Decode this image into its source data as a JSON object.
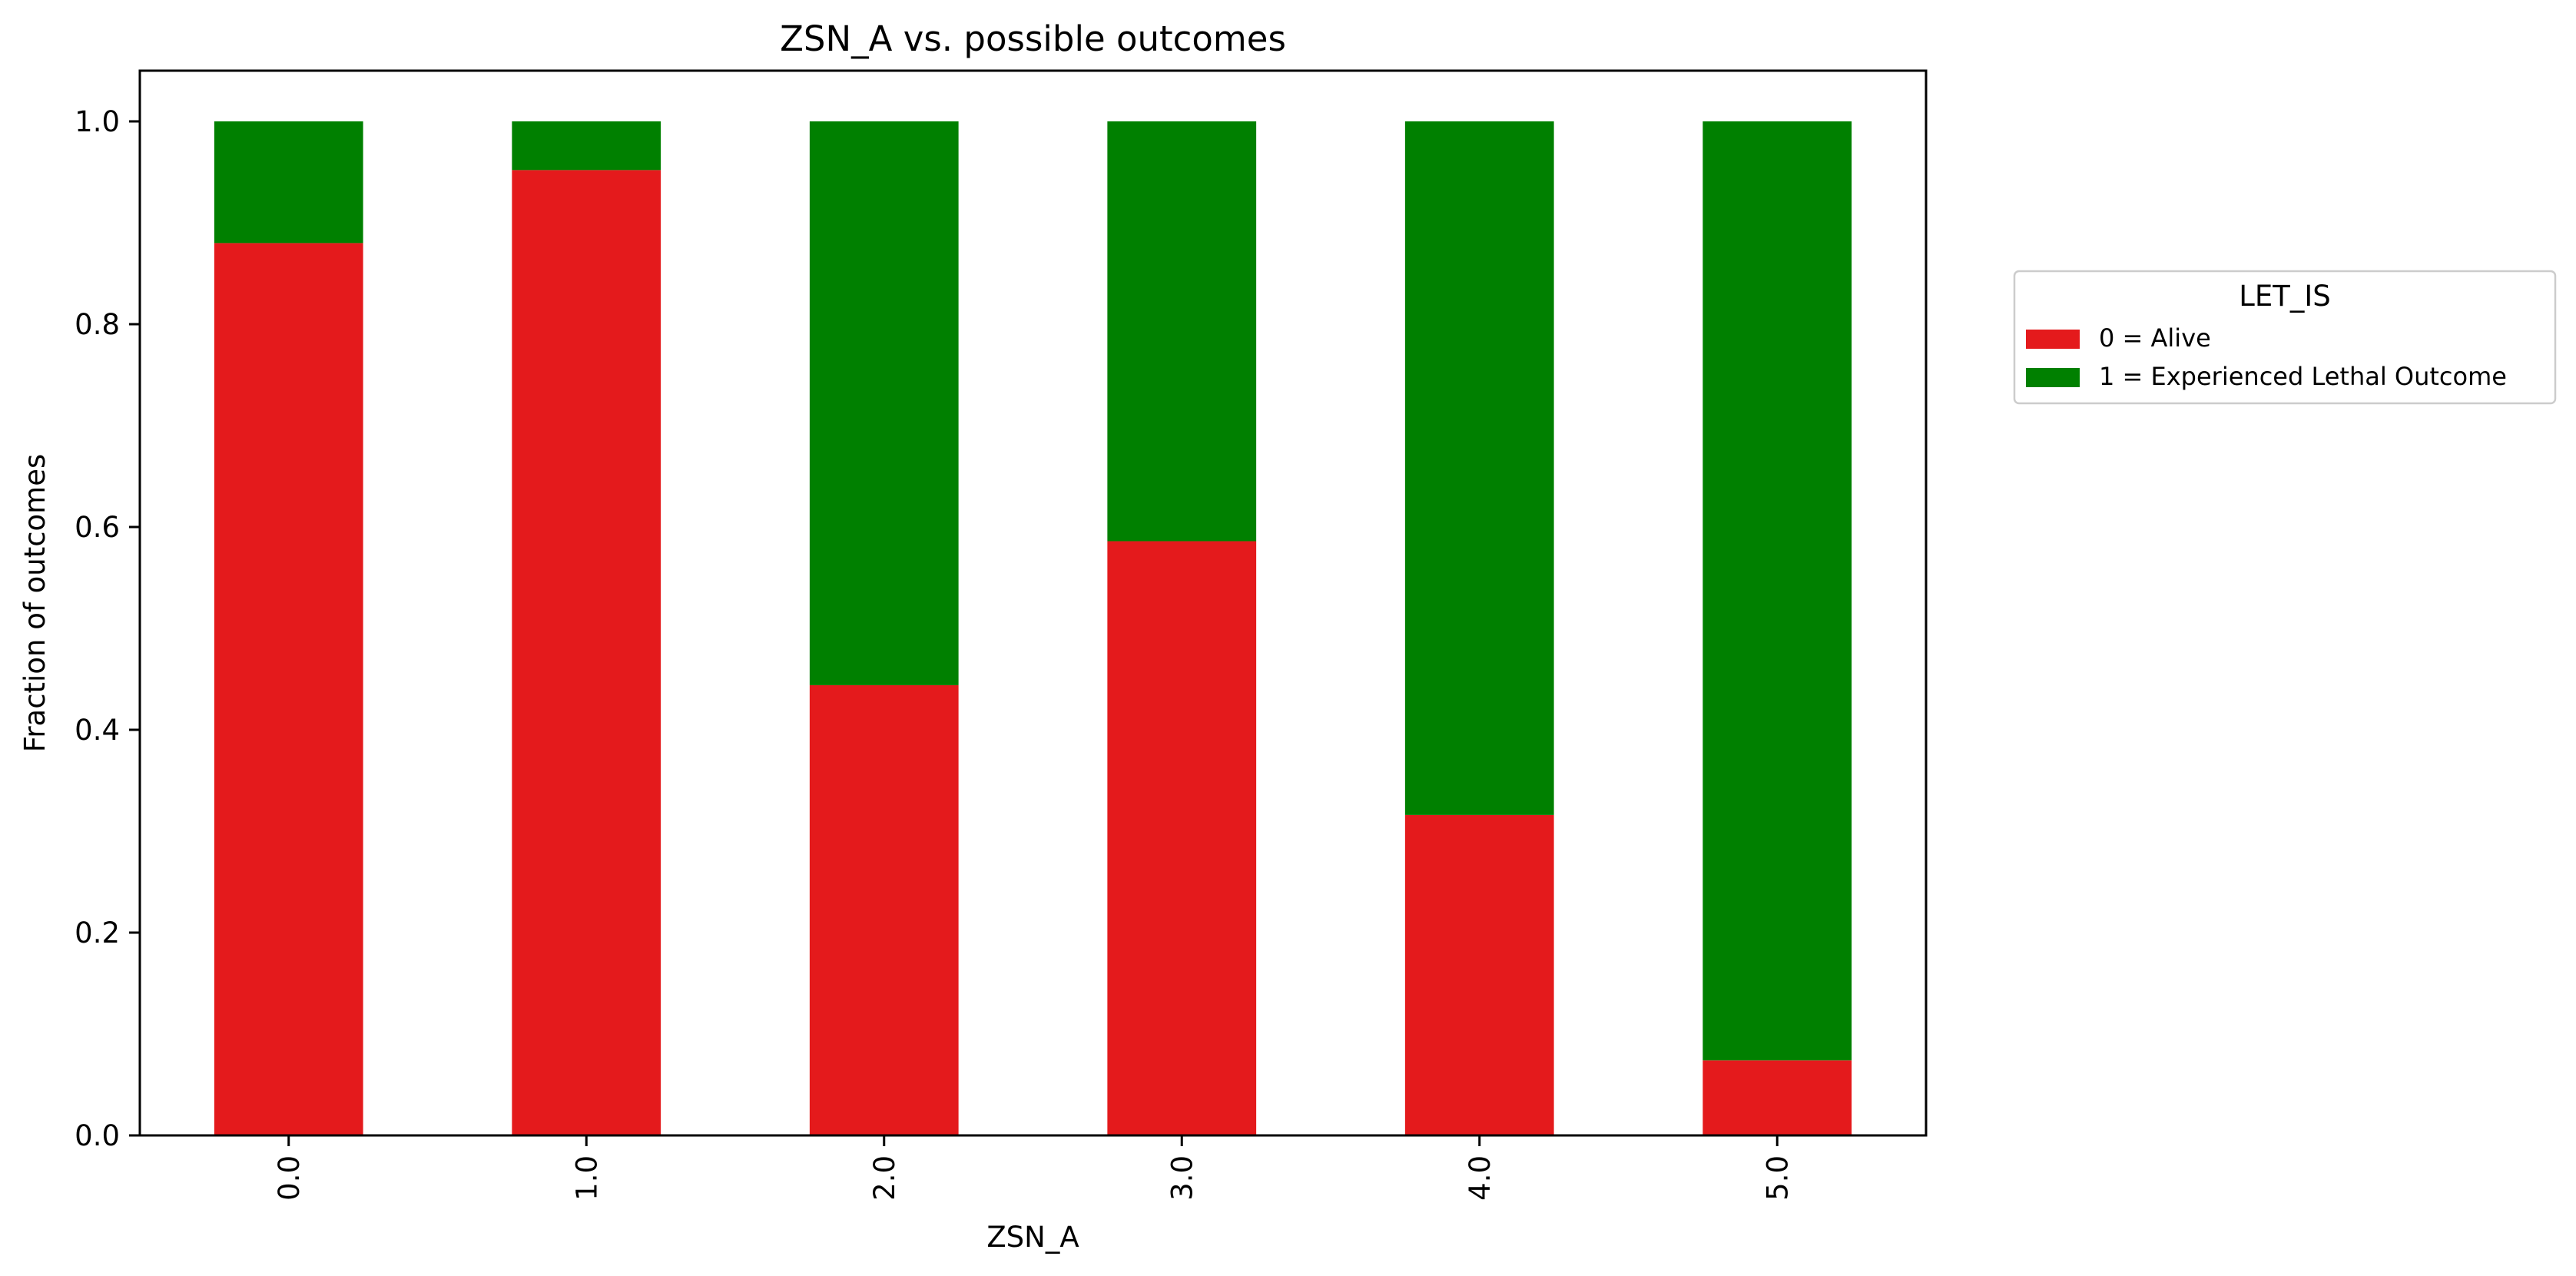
{
  "chart_data": {
    "type": "bar",
    "stacked": true,
    "title": "ZSN_A vs. possible outcomes",
    "xlabel": "ZSN_A",
    "ylabel": "Fraction of outcomes",
    "categories": [
      "0.0",
      "1.0",
      "2.0",
      "3.0",
      "4.0",
      "5.0"
    ],
    "series": [
      {
        "name": "0 = Alive",
        "color": "#e41a1c",
        "values": [
          0.88,
          0.952,
          0.444,
          0.586,
          0.316,
          0.074
        ]
      },
      {
        "name": "1 = Experienced Lethal Outcome",
        "color": "#008000",
        "values": [
          0.12,
          0.048,
          0.556,
          0.414,
          0.684,
          0.926
        ]
      }
    ],
    "ylim": [
      0,
      1.05
    ],
    "yticks": [
      "0.0",
      "0.2",
      "0.4",
      "0.6",
      "0.8",
      "1.0"
    ],
    "x_tick_rotation": "vertical",
    "grid": false,
    "legend": {
      "title": "LET_IS",
      "placement": "outside right"
    }
  }
}
